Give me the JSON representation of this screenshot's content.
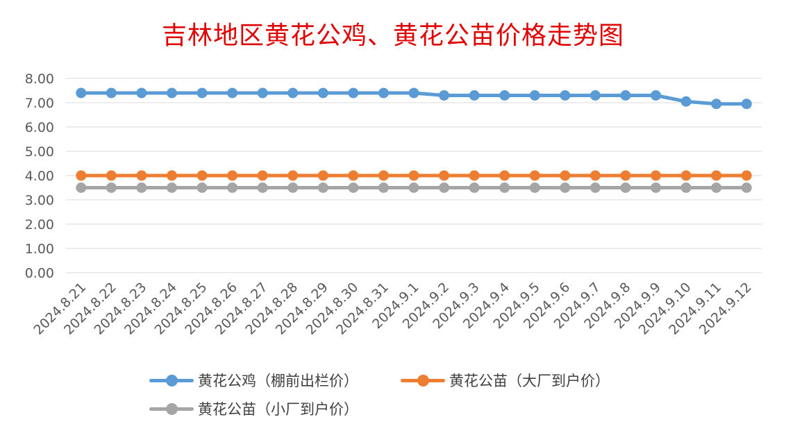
{
  "chart_data": {
    "type": "line",
    "title": "吉林地区黄花公鸡、黄花公苗价格走势图",
    "categories": [
      "2024.8.21",
      "2024.8.22",
      "2024.8.23",
      "2024.8.24",
      "2024.8.25",
      "2024.8.26",
      "2024.8.27",
      "2024.8.28",
      "2024.8.29",
      "2024.8.30",
      "2024.8.31",
      "2024.9.1",
      "2024.9.2",
      "2024.9.3",
      "2024.9.4",
      "2024.9.5",
      "2024.9.6",
      "2024.9.7",
      "2024.9.8",
      "2024.9.9",
      "2024.9.10",
      "2024.9.11",
      "2024.9.12"
    ],
    "yticks": [
      "0.00",
      "1.00",
      "2.00",
      "3.00",
      "4.00",
      "5.00",
      "6.00",
      "7.00",
      "8.00"
    ],
    "ylim": [
      0,
      8
    ],
    "grid": true,
    "legend_position": "bottom",
    "series": [
      {
        "name": "黄花公鸡（棚前出栏价）",
        "color": "#5b9bd5",
        "values": [
          7.4,
          7.4,
          7.4,
          7.4,
          7.4,
          7.4,
          7.4,
          7.4,
          7.4,
          7.4,
          7.4,
          7.4,
          7.3,
          7.3,
          7.3,
          7.3,
          7.3,
          7.3,
          7.3,
          7.3,
          7.05,
          6.95,
          6.95
        ]
      },
      {
        "name": "黄花公苗（大厂到户价）",
        "color": "#ed7d31",
        "values": [
          4.0,
          4.0,
          4.0,
          4.0,
          4.0,
          4.0,
          4.0,
          4.0,
          4.0,
          4.0,
          4.0,
          4.0,
          4.0,
          4.0,
          4.0,
          4.0,
          4.0,
          4.0,
          4.0,
          4.0,
          4.0,
          4.0,
          4.0
        ]
      },
      {
        "name": "黄花公苗（小厂到户价）",
        "color": "#a5a5a5",
        "values": [
          3.5,
          3.5,
          3.5,
          3.5,
          3.5,
          3.5,
          3.5,
          3.5,
          3.5,
          3.5,
          3.5,
          3.5,
          3.5,
          3.5,
          3.5,
          3.5,
          3.5,
          3.5,
          3.5,
          3.5,
          3.5,
          3.5,
          3.5
        ]
      }
    ]
  }
}
